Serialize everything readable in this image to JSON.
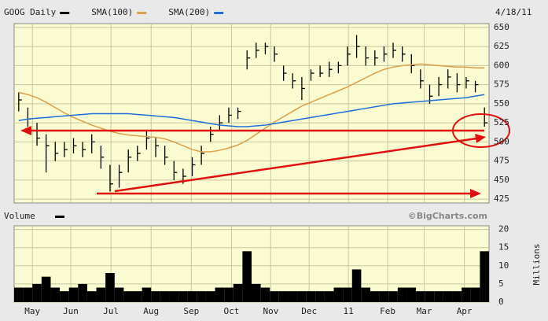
{
  "chart_data": [
    {
      "type": "ohlc",
      "date": "4/18/11",
      "xlim": [
        -0.5,
        51.5
      ],
      "ylim": [
        420,
        655
      ],
      "yticks": [
        425,
        450,
        475,
        500,
        525,
        550,
        575,
        600,
        625,
        650
      ],
      "grid": true,
      "series": [
        {
          "name": "GOOG Daily",
          "color": "#000000",
          "high": [
            565,
            545,
            525,
            510,
            500,
            500,
            505,
            500,
            510,
            495,
            470,
            470,
            490,
            495,
            515,
            505,
            495,
            475,
            465,
            480,
            495,
            520,
            535,
            545,
            545,
            620,
            630,
            630,
            625,
            600,
            590,
            585,
            595,
            600,
            605,
            605,
            625,
            640,
            625,
            620,
            625,
            630,
            625,
            615,
            595,
            575,
            585,
            595,
            590,
            585,
            580,
            545
          ],
          "low": [
            540,
            520,
            495,
            460,
            475,
            480,
            485,
            480,
            485,
            465,
            435,
            440,
            460,
            475,
            490,
            480,
            470,
            450,
            445,
            455,
            470,
            500,
            515,
            525,
            530,
            595,
            610,
            615,
            605,
            580,
            570,
            555,
            580,
            585,
            585,
            590,
            600,
            610,
            600,
            600,
            605,
            610,
            605,
            590,
            570,
            550,
            560,
            570,
            565,
            570,
            565,
            520
          ],
          "close": [
            555,
            530,
            505,
            495,
            485,
            490,
            495,
            490,
            500,
            480,
            445,
            460,
            480,
            485,
            505,
            495,
            480,
            460,
            455,
            470,
            485,
            510,
            525,
            535,
            540,
            610,
            620,
            625,
            615,
            590,
            580,
            570,
            590,
            590,
            595,
            600,
            615,
            625,
            610,
            610,
            615,
            620,
            615,
            600,
            580,
            560,
            575,
            585,
            575,
            580,
            575,
            525
          ]
        },
        {
          "name": "SMA(100)",
          "color": "#d9a04a",
          "values": [
            565,
            562,
            558,
            552,
            545,
            538,
            532,
            527,
            522,
            518,
            514,
            511,
            509,
            508,
            507,
            506,
            504,
            500,
            495,
            490,
            487,
            487,
            489,
            492,
            496,
            502,
            510,
            518,
            526,
            533,
            540,
            547,
            552,
            557,
            562,
            567,
            572,
            578,
            584,
            590,
            595,
            598,
            600,
            601,
            602,
            601,
            600,
            599,
            598,
            598,
            597,
            597
          ]
        },
        {
          "name": "SMA(200)",
          "color": "#1f6fd6",
          "values": [
            528,
            530,
            531,
            532,
            533,
            534,
            535,
            536,
            537,
            537,
            537,
            537,
            537,
            536,
            535,
            534,
            533,
            532,
            530,
            528,
            526,
            524,
            522,
            521,
            520,
            520,
            521,
            522,
            524,
            526,
            528,
            530,
            532,
            534,
            536,
            538,
            540,
            542,
            544,
            546,
            548,
            550,
            551,
            552,
            553,
            554,
            555,
            556,
            557,
            558,
            560,
            562
          ]
        }
      ]
    },
    {
      "type": "bar",
      "title": "Volume",
      "source": "©BigCharts.com",
      "y_label": "Millions",
      "xlim": [
        -0.5,
        51.5
      ],
      "ylim": [
        0,
        21
      ],
      "yticks": [
        0,
        5,
        10,
        15,
        20
      ],
      "grid": true,
      "xticks": [
        {
          "value": 1.5,
          "label": "May"
        },
        {
          "value": 5.7,
          "label": "Jun"
        },
        {
          "value": 10.1,
          "label": "Jul"
        },
        {
          "value": 14.5,
          "label": "Aug"
        },
        {
          "value": 18.9,
          "label": "Sep"
        },
        {
          "value": 23.3,
          "label": "Oct"
        },
        {
          "value": 27.6,
          "label": "Nov"
        },
        {
          "value": 31.8,
          "label": "Dec"
        },
        {
          "value": 36.1,
          "label": "11"
        },
        {
          "value": 40.4,
          "label": "Feb"
        },
        {
          "value": 44.4,
          "label": "Mar"
        },
        {
          "value": 48.8,
          "label": "Apr"
        }
      ],
      "series": [
        {
          "name": "Volume",
          "color": "#000000",
          "values": [
            4,
            4,
            5,
            7,
            4,
            3,
            4,
            5,
            3,
            4,
            8,
            4,
            3,
            3,
            4,
            3,
            3,
            3,
            3,
            3,
            3,
            3,
            4,
            4,
            5,
            14,
            5,
            4,
            3,
            3,
            3,
            3,
            3,
            3,
            3,
            4,
            4,
            9,
            4,
            3,
            3,
            3,
            4,
            4,
            3,
            3,
            3,
            3,
            3,
            4,
            4,
            14
          ]
        }
      ]
    }
  ]
}
